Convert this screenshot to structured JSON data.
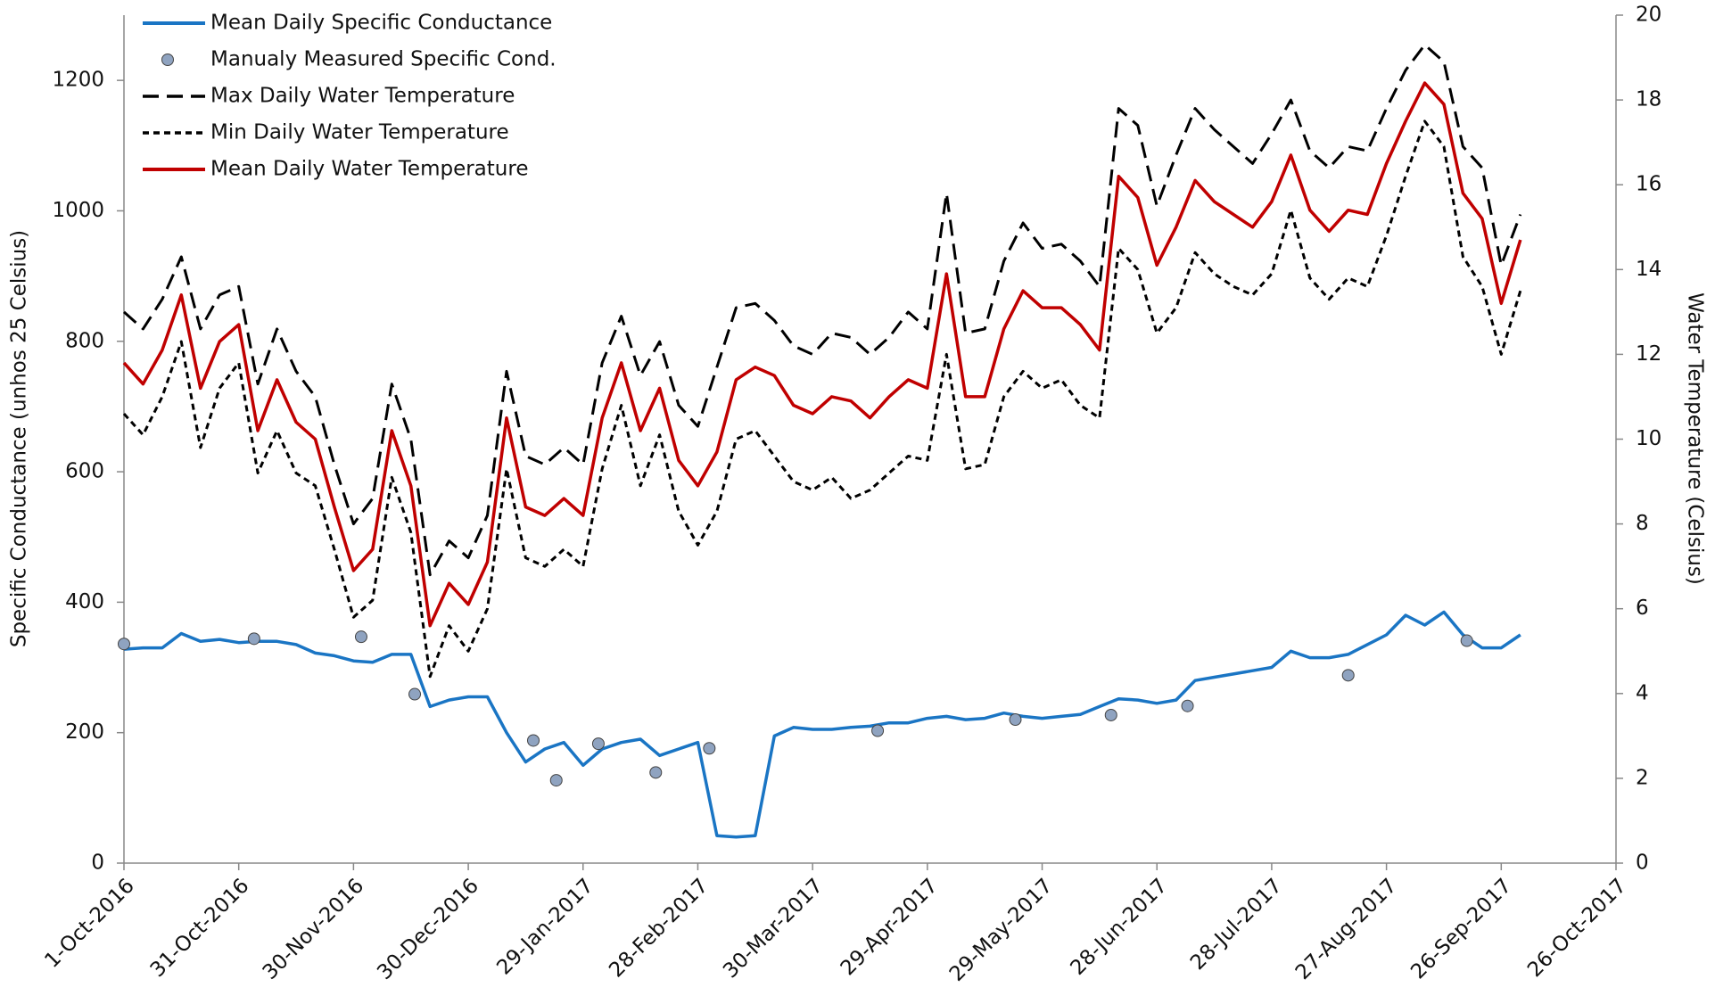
{
  "chart_data": {
    "type": "line",
    "y_label": "Specific Conductance (unhos 25 Celsius)",
    "y2_label": "Water Temperature (Celsius)",
    "legend": "upper left",
    "xlim": [
      "2016-10-01",
      "2017-10-26"
    ],
    "xticks": [
      {
        "value": "2016-10-01",
        "label": "1-Oct-2016"
      },
      {
        "value": "2016-10-31",
        "label": "31-Oct-2016"
      },
      {
        "value": "2016-11-30",
        "label": "30-Nov-2016"
      },
      {
        "value": "2016-12-30",
        "label": "30-Dec-2016"
      },
      {
        "value": "2017-01-29",
        "label": "29-Jan-2017"
      },
      {
        "value": "2017-02-28",
        "label": "28-Feb-2017"
      },
      {
        "value": "2017-03-30",
        "label": "30-Mar-2017"
      },
      {
        "value": "2017-04-29",
        "label": "29-Apr-2017"
      },
      {
        "value": "2017-05-29",
        "label": "29-May-2017"
      },
      {
        "value": "2017-06-28",
        "label": "28-Jun-2017"
      },
      {
        "value": "2017-07-28",
        "label": "28-Jul-2017"
      },
      {
        "value": "2017-08-27",
        "label": "27-Aug-2017"
      },
      {
        "value": "2017-09-26",
        "label": "26-Sep-2017"
      },
      {
        "value": "2017-10-26",
        "label": "26-Oct-2017"
      }
    ],
    "ylim": [
      0,
      1300
    ],
    "yticks": [
      0,
      200,
      400,
      600,
      800,
      1000,
      1200
    ],
    "y2lim": [
      0,
      20
    ],
    "y2ticks": [
      0,
      2,
      4,
      6,
      8,
      10,
      12,
      14,
      16,
      18,
      20
    ],
    "x": [
      "2016-10-01",
      "2016-10-06",
      "2016-10-11",
      "2016-10-16",
      "2016-10-21",
      "2016-10-26",
      "2016-10-31",
      "2016-11-05",
      "2016-11-10",
      "2016-11-15",
      "2016-11-20",
      "2016-11-25",
      "2016-11-30",
      "2016-12-05",
      "2016-12-10",
      "2016-12-15",
      "2016-12-20",
      "2016-12-25",
      "2016-12-30",
      "2017-01-04",
      "2017-01-09",
      "2017-01-14",
      "2017-01-19",
      "2017-01-24",
      "2017-01-29",
      "2017-02-03",
      "2017-02-08",
      "2017-02-13",
      "2017-02-18",
      "2017-02-23",
      "2017-02-28",
      "2017-03-05",
      "2017-03-10",
      "2017-03-15",
      "2017-03-20",
      "2017-03-25",
      "2017-03-30",
      "2017-04-04",
      "2017-04-09",
      "2017-04-14",
      "2017-04-19",
      "2017-04-24",
      "2017-04-29",
      "2017-05-04",
      "2017-05-09",
      "2017-05-14",
      "2017-05-19",
      "2017-05-24",
      "2017-05-29",
      "2017-06-03",
      "2017-06-08",
      "2017-06-13",
      "2017-06-18",
      "2017-06-23",
      "2017-06-28",
      "2017-07-03",
      "2017-07-08",
      "2017-07-13",
      "2017-07-18",
      "2017-07-23",
      "2017-07-28",
      "2017-08-02",
      "2017-08-07",
      "2017-08-12",
      "2017-08-17",
      "2017-08-22",
      "2017-08-27",
      "2017-09-01",
      "2017-09-06",
      "2017-09-11",
      "2017-09-16",
      "2017-09-21",
      "2017-09-26",
      "2017-10-01"
    ],
    "series": [
      {
        "name": "Mean Daily Specific Conductance",
        "color": "#1a75c4",
        "style": "solid",
        "axis": "y",
        "values": [
          328,
          330,
          330,
          352,
          340,
          343,
          338,
          340,
          340,
          335,
          322,
          318,
          310,
          308,
          320,
          320,
          240,
          250,
          255,
          255,
          200,
          155,
          175,
          185,
          150,
          175,
          185,
          190,
          165,
          175,
          185,
          42,
          40,
          42,
          195,
          208,
          205,
          205,
          208,
          210,
          215,
          215,
          222,
          225,
          220,
          222,
          230,
          225,
          222,
          225,
          228,
          240,
          252,
          250,
          245,
          250,
          280,
          285,
          290,
          295,
          300,
          325,
          315,
          315,
          320,
          335,
          350,
          380,
          365,
          385,
          350,
          330,
          330,
          350
        ]
      },
      {
        "name": "Manualy Measured Specific Cond.",
        "color": "#8fa3c0",
        "style": "marker",
        "axis": "y",
        "x": [
          "2016-10-01",
          "2016-11-04",
          "2016-12-02",
          "2016-12-16",
          "2017-01-16",
          "2017-01-22",
          "2017-02-02",
          "2017-02-17",
          "2017-03-03",
          "2017-04-16",
          "2017-05-22",
          "2017-06-16",
          "2017-07-06",
          "2017-08-17",
          "2017-09-17"
        ],
        "values": [
          336,
          344,
          347,
          259,
          188,
          127,
          183,
          139,
          176,
          203,
          220,
          227,
          241,
          288,
          341
        ]
      },
      {
        "name": "Max Daily Water Temperature",
        "color": "#000000",
        "style": "dashed",
        "axis": "y2",
        "values": [
          13.0,
          12.6,
          13.3,
          14.3,
          12.6,
          13.4,
          13.6,
          11.3,
          12.6,
          11.6,
          11.0,
          9.4,
          8.0,
          8.6,
          11.3,
          10.0,
          6.8,
          7.6,
          7.2,
          8.2,
          11.6,
          9.6,
          9.4,
          9.8,
          9.4,
          11.8,
          12.9,
          11.5,
          12.3,
          10.8,
          10.3,
          11.7,
          13.1,
          13.2,
          12.8,
          12.2,
          12.0,
          12.5,
          12.4,
          12.0,
          12.4,
          13.0,
          12.6,
          15.8,
          12.5,
          12.6,
          14.2,
          15.1,
          14.5,
          14.6,
          14.2,
          13.6,
          17.8,
          17.4,
          15.5,
          16.7,
          17.8,
          17.3,
          16.9,
          16.5,
          17.2,
          18.0,
          16.8,
          16.4,
          16.9,
          16.8,
          17.8,
          18.7,
          19.3,
          18.9,
          16.9,
          16.4,
          14.1,
          15.3
        ]
      },
      {
        "name": "Min Daily Water Temperature",
        "color": "#000000",
        "style": "dotted",
        "axis": "y2",
        "values": [
          10.6,
          10.1,
          11.0,
          12.3,
          9.8,
          11.2,
          11.8,
          9.2,
          10.2,
          9.2,
          8.9,
          7.4,
          5.8,
          6.2,
          9.1,
          7.8,
          4.4,
          5.6,
          5.0,
          6.0,
          9.3,
          7.2,
          7.0,
          7.4,
          7.0,
          9.3,
          10.8,
          8.9,
          10.1,
          8.3,
          7.5,
          8.3,
          10.0,
          10.2,
          9.6,
          9.0,
          8.8,
          9.1,
          8.6,
          8.8,
          9.2,
          9.6,
          9.5,
          12.0,
          9.3,
          9.4,
          11.0,
          11.6,
          11.2,
          11.4,
          10.8,
          10.5,
          14.5,
          14.0,
          12.5,
          13.1,
          14.4,
          13.9,
          13.6,
          13.4,
          13.9,
          15.4,
          13.8,
          13.3,
          13.8,
          13.6,
          14.8,
          16.2,
          17.5,
          16.9,
          14.3,
          13.6,
          12.0,
          13.5
        ]
      },
      {
        "name": "Mean Daily Water Temperature",
        "color": "#c00000",
        "style": "solid",
        "axis": "y2",
        "values": [
          11.8,
          11.3,
          12.1,
          13.4,
          11.2,
          12.3,
          12.7,
          10.2,
          11.4,
          10.4,
          10.0,
          8.4,
          6.9,
          7.4,
          10.2,
          8.9,
          5.6,
          6.6,
          6.1,
          7.1,
          10.5,
          8.4,
          8.2,
          8.6,
          8.2,
          10.5,
          11.8,
          10.2,
          11.2,
          9.5,
          8.9,
          9.7,
          11.4,
          11.7,
          11.5,
          10.8,
          10.6,
          11.0,
          10.9,
          10.5,
          11.0,
          11.4,
          11.2,
          13.9,
          11.0,
          11.0,
          12.6,
          13.5,
          13.1,
          13.1,
          12.7,
          12.1,
          16.2,
          15.7,
          14.1,
          15.0,
          16.1,
          15.6,
          15.3,
          15.0,
          15.6,
          16.7,
          15.4,
          14.9,
          15.4,
          15.3,
          16.5,
          17.5,
          18.4,
          17.9,
          15.8,
          15.2,
          13.2,
          14.7
        ]
      }
    ]
  }
}
